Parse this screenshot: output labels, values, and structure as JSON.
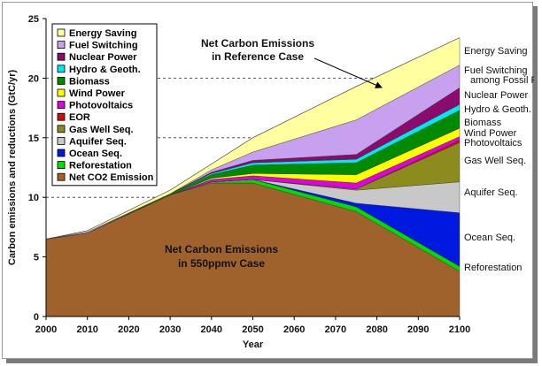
{
  "chart_data": {
    "type": "area",
    "title": "",
    "xlabel": "Year",
    "ylabel": "Carbon emissions and reductions (GtC/yr)",
    "xlim": [
      2000,
      2100
    ],
    "ylim": [
      0,
      25
    ],
    "x_ticks": [
      2000,
      2010,
      2020,
      2030,
      2040,
      2050,
      2060,
      2070,
      2080,
      2090,
      2100
    ],
    "y_ticks": [
      0,
      5,
      10,
      15,
      20,
      25
    ],
    "grid": "dashed horizontal lines at 10, 15, 20",
    "legend_position": "top-left",
    "x": [
      2000,
      2010,
      2030,
      2040,
      2050,
      2075,
      2100
    ],
    "series": [
      {
        "name": "Net CO2 Emission",
        "color": "#a0622d",
        "values": [
          6.5,
          7.0,
          10.2,
          11.2,
          11.2,
          8.8,
          3.8
        ]
      },
      {
        "name": "Reforestation",
        "color": "#00dd00",
        "values": [
          0,
          0,
          0,
          0.1,
          0.3,
          0.4,
          0.4
        ]
      },
      {
        "name": "Ocean Seq.",
        "color": "#0018e0",
        "values": [
          0,
          0,
          0,
          0,
          0,
          0.3,
          4.5
        ]
      },
      {
        "name": "Aquifer Seq.",
        "color": "#c8c8c8",
        "values": [
          0,
          0,
          0,
          0,
          0,
          1.1,
          2.6
        ]
      },
      {
        "name": "Gas Well Seq.",
        "color": "#8c8c1e",
        "values": [
          0,
          0,
          0,
          0,
          0,
          0.1,
          3.3
        ]
      },
      {
        "name": "EOR",
        "color": "#cc1010",
        "values": [
          0,
          0,
          0,
          0,
          0,
          0,
          0.2
        ]
      },
      {
        "name": "Photovoltaics",
        "color": "#e000e0",
        "values": [
          0,
          0,
          0,
          0.2,
          0.3,
          0.5,
          0.3
        ]
      },
      {
        "name": "Wind Power",
        "color": "#ffff00",
        "values": [
          0,
          0,
          0,
          0.1,
          0.2,
          0.7,
          0.7
        ]
      },
      {
        "name": "Biomass",
        "color": "#008a00",
        "values": [
          0,
          0,
          0.1,
          0.3,
          0.7,
          1.0,
          1.5
        ]
      },
      {
        "name": "Hydro & Geoth.",
        "color": "#00e8f0",
        "values": [
          0,
          0,
          0,
          0.1,
          0.2,
          0.3,
          0.5
        ]
      },
      {
        "name": "Nuclear Power",
        "color": "#8a0a6e",
        "values": [
          0,
          0,
          0,
          0.1,
          0.2,
          0.4,
          1.4
        ]
      },
      {
        "name": "Fuel Switching",
        "color": "#c8a0f0",
        "values": [
          0,
          0.1,
          0,
          0.2,
          0.7,
          2.9,
          1.9
        ]
      },
      {
        "name": "Energy Saving",
        "color": "#ffffa0",
        "values": [
          0,
          0.1,
          0.3,
          0.5,
          1.2,
          2.8,
          2.3
        ]
      }
    ],
    "legend_order": [
      "Energy Saving",
      "Fuel Switching",
      "Nuclear Power",
      "Hydro & Geoth.",
      "Biomass",
      "Wind Power",
      "Photovoltaics",
      "EOR",
      "Gas Well Seq.",
      "Aquifer Seq.",
      "Ocean Seq.",
      "Reforestation",
      "Net CO2 Emission"
    ],
    "right_labels": [
      {
        "text": "Energy Saving"
      },
      {
        "text": "Fuel Switching"
      },
      {
        "text": "among Fossil Fuels"
      },
      {
        "text": "Nuclear Power"
      },
      {
        "text": "Hydro & Geoth."
      },
      {
        "text": "Biomass"
      },
      {
        "text": "Wind Power"
      },
      {
        "text": "Photovoltaics"
      },
      {
        "text": "Gas Well Seq."
      },
      {
        "text": "Aquifer Seq."
      },
      {
        "text": "Ocean Seq."
      },
      {
        "text": "Reforestation"
      }
    ],
    "annotations": {
      "reference_line1": "Net Carbon Emissions",
      "reference_line2": "in Reference Case",
      "inner_line1": "Net Carbon Emissions",
      "inner_line2": "in 550ppmv Case"
    }
  }
}
